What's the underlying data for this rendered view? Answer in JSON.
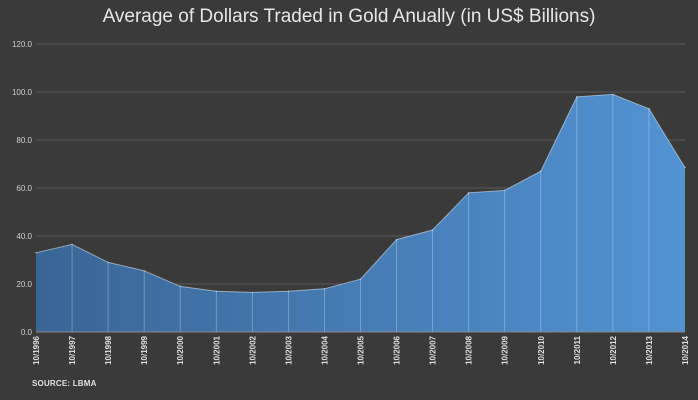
{
  "colors": {
    "background": "#3a3a3a",
    "area_left": "#3a6596",
    "area_right": "#5293d3",
    "gridline": "#5a5a5a",
    "text": "#d9d9d9"
  },
  "chart_data": {
    "type": "area",
    "title": "Average of Dollars Traded in Gold Anually (in US$ Billions)",
    "xlabel": "",
    "ylabel": "",
    "x": [
      "10/1996",
      "10/1997",
      "10/1998",
      "10/1999",
      "10/2000",
      "10/2001",
      "10/2002",
      "10/2003",
      "10/2004",
      "10/2005",
      "10/2006",
      "10/2007",
      "10/2008",
      "10/2009",
      "10/2010",
      "10/2011",
      "10/2012",
      "10/2013",
      "10/2014"
    ],
    "series": [
      {
        "values": [
          33,
          36.5,
          29,
          25.5,
          19,
          17,
          16.5,
          17,
          18,
          22,
          38.5,
          42.5,
          58,
          59,
          67,
          98,
          99,
          93,
          68.5
        ]
      }
    ],
    "ylim": [
      0,
      120
    ],
    "yticks": [
      "0.0",
      "20.0",
      "40.0",
      "60.0",
      "80.0",
      "100.0",
      "120.0"
    ],
    "grid": true,
    "legend": "none",
    "source": "SOURCE: LBMA"
  }
}
